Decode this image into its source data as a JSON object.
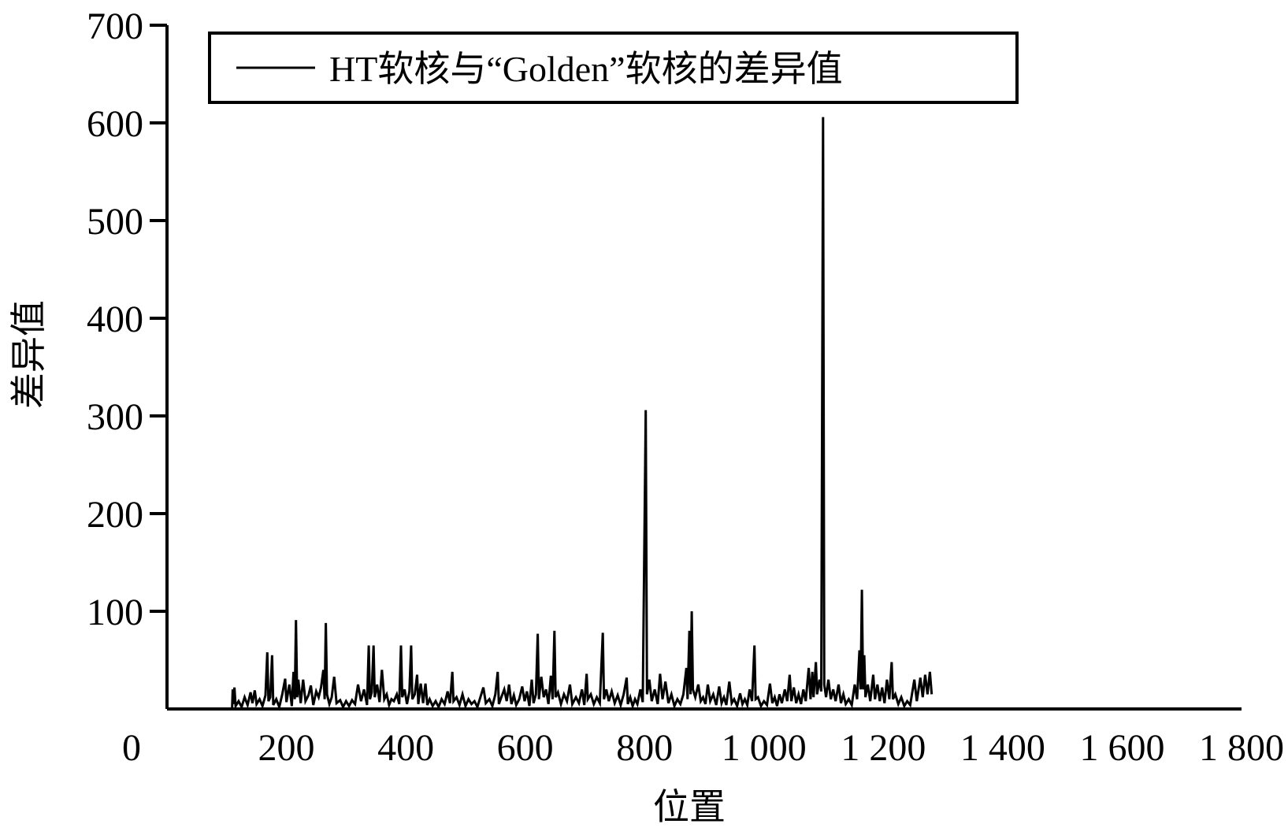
{
  "chart_data": {
    "type": "line",
    "title": "",
    "xlabel": "位置",
    "ylabel": "差异值",
    "xlim": [
      0,
      1800
    ],
    "ylim": [
      0,
      700
    ],
    "x_ticks": [
      0,
      200,
      400,
      600,
      800,
      1000,
      1200,
      1400,
      1600,
      1800
    ],
    "x_tick_labels": [
      "0",
      "200",
      "400",
      "600",
      "800",
      "1 000",
      "1 200",
      "1 400",
      "1 600",
      "1 800"
    ],
    "y_ticks": [
      100,
      200,
      300,
      400,
      500,
      600,
      700
    ],
    "y_tick_labels": [
      "100",
      "200",
      "300",
      "400",
      "500",
      "600",
      "700"
    ],
    "grid": false,
    "legend": {
      "placement": "top-left",
      "entries": [
        "HT软核与“Golden”软核的差异值"
      ]
    },
    "series": [
      {
        "name": "HT软核与“Golden”软核的差异值",
        "color": "#000000",
        "points": [
          [
            0,
            0
          ],
          [
            100,
            0
          ],
          [
            109,
            0
          ],
          [
            110,
            20
          ],
          [
            111,
            5
          ],
          [
            113,
            22
          ],
          [
            115,
            3
          ],
          [
            120,
            8
          ],
          [
            125,
            2
          ],
          [
            130,
            12
          ],
          [
            135,
            4
          ],
          [
            140,
            17
          ],
          [
            143,
            6
          ],
          [
            147,
            19
          ],
          [
            150,
            5
          ],
          [
            155,
            10
          ],
          [
            160,
            3
          ],
          [
            165,
            14
          ],
          [
            168,
            58
          ],
          [
            170,
            8
          ],
          [
            173,
            12
          ],
          [
            176,
            55
          ],
          [
            178,
            4
          ],
          [
            183,
            10
          ],
          [
            188,
            2
          ],
          [
            193,
            15
          ],
          [
            198,
            31
          ],
          [
            200,
            7
          ],
          [
            205,
            25
          ],
          [
            209,
            3
          ],
          [
            212,
            38
          ],
          [
            214,
            10
          ],
          [
            216,
            91
          ],
          [
            218,
            12
          ],
          [
            220,
            30
          ],
          [
            224,
            6
          ],
          [
            228,
            30
          ],
          [
            232,
            8
          ],
          [
            237,
            14
          ],
          [
            241,
            24
          ],
          [
            245,
            4
          ],
          [
            250,
            18
          ],
          [
            254,
            12
          ],
          [
            258,
            22
          ],
          [
            262,
            40
          ],
          [
            264,
            10
          ],
          [
            266,
            88
          ],
          [
            268,
            15
          ],
          [
            272,
            5
          ],
          [
            276,
            12
          ],
          [
            280,
            33
          ],
          [
            284,
            6
          ],
          [
            290,
            9
          ],
          [
            295,
            2
          ],
          [
            300,
            8
          ],
          [
            305,
            3
          ],
          [
            310,
            9
          ],
          [
            315,
            5
          ],
          [
            320,
            25
          ],
          [
            325,
            8
          ],
          [
            330,
            20
          ],
          [
            335,
            4
          ],
          [
            338,
            65
          ],
          [
            340,
            10
          ],
          [
            343,
            17
          ],
          [
            346,
            65
          ],
          [
            348,
            12
          ],
          [
            352,
            25
          ],
          [
            356,
            7
          ],
          [
            360,
            40
          ],
          [
            364,
            10
          ],
          [
            368,
            15
          ],
          [
            372,
            4
          ],
          [
            376,
            10
          ],
          [
            380,
            8
          ],
          [
            385,
            15
          ],
          [
            389,
            5
          ],
          [
            392,
            65
          ],
          [
            394,
            12
          ],
          [
            398,
            20
          ],
          [
            402,
            5
          ],
          [
            406,
            18
          ],
          [
            409,
            65
          ],
          [
            411,
            10
          ],
          [
            415,
            15
          ],
          [
            419,
            35
          ],
          [
            421,
            5
          ],
          [
            425,
            26
          ],
          [
            429,
            6
          ],
          [
            433,
            26
          ],
          [
            436,
            4
          ],
          [
            440,
            10
          ],
          [
            445,
            3
          ],
          [
            450,
            8
          ],
          [
            455,
            2
          ],
          [
            460,
            10
          ],
          [
            465,
            5
          ],
          [
            470,
            18
          ],
          [
            474,
            6
          ],
          [
            478,
            38
          ],
          [
            480,
            8
          ],
          [
            485,
            12
          ],
          [
            490,
            4
          ],
          [
            495,
            15
          ],
          [
            500,
            3
          ],
          [
            505,
            10
          ],
          [
            510,
            5
          ],
          [
            515,
            8
          ],
          [
            520,
            2
          ],
          [
            530,
            22
          ],
          [
            534,
            6
          ],
          [
            540,
            10
          ],
          [
            545,
            3
          ],
          [
            550,
            15
          ],
          [
            554,
            38
          ],
          [
            556,
            5
          ],
          [
            560,
            12
          ],
          [
            565,
            20
          ],
          [
            569,
            8
          ],
          [
            573,
            25
          ],
          [
            577,
            5
          ],
          [
            581,
            14
          ],
          [
            585,
            4
          ],
          [
            590,
            10
          ],
          [
            595,
            23
          ],
          [
            599,
            8
          ],
          [
            603,
            18
          ],
          [
            607,
            3
          ],
          [
            611,
            30
          ],
          [
            614,
            6
          ],
          [
            618,
            15
          ],
          [
            621,
            77
          ],
          [
            623,
            10
          ],
          [
            627,
            33
          ],
          [
            631,
            12
          ],
          [
            635,
            20
          ],
          [
            639,
            5
          ],
          [
            643,
            34
          ],
          [
            646,
            10
          ],
          [
            649,
            80
          ],
          [
            651,
            12
          ],
          [
            655,
            17
          ],
          [
            660,
            5
          ],
          [
            665,
            15
          ],
          [
            670,
            8
          ],
          [
            675,
            25
          ],
          [
            679,
            5
          ],
          [
            685,
            12
          ],
          [
            690,
            6
          ],
          [
            695,
            20
          ],
          [
            699,
            4
          ],
          [
            703,
            36
          ],
          [
            705,
            10
          ],
          [
            710,
            15
          ],
          [
            715,
            5
          ],
          [
            720,
            12
          ],
          [
            725,
            6
          ],
          [
            730,
            78
          ],
          [
            732,
            10
          ],
          [
            736,
            20
          ],
          [
            740,
            8
          ],
          [
            745,
            18
          ],
          [
            750,
            6
          ],
          [
            755,
            14
          ],
          [
            760,
            4
          ],
          [
            765,
            15
          ],
          [
            770,
            32
          ],
          [
            772,
            5
          ],
          [
            776,
            12
          ],
          [
            780,
            3
          ],
          [
            784,
            10
          ],
          [
            788,
            5
          ],
          [
            793,
            20
          ],
          [
            797,
            7
          ],
          [
            802,
            306
          ],
          [
            804,
            15
          ],
          [
            808,
            30
          ],
          [
            812,
            8
          ],
          [
            817,
            20
          ],
          [
            822,
            5
          ],
          [
            826,
            36
          ],
          [
            830,
            10
          ],
          [
            835,
            28
          ],
          [
            840,
            6
          ],
          [
            845,
            15
          ],
          [
            850,
            3
          ],
          [
            855,
            10
          ],
          [
            860,
            5
          ],
          [
            865,
            15
          ],
          [
            870,
            42
          ],
          [
            872,
            10
          ],
          [
            875,
            80
          ],
          [
            877,
            15
          ],
          [
            879,
            100
          ],
          [
            881,
            20
          ],
          [
            885,
            12
          ],
          [
            890,
            25
          ],
          [
            894,
            8
          ],
          [
            898,
            12
          ],
          [
            902,
            5
          ],
          [
            906,
            25
          ],
          [
            910,
            8
          ],
          [
            915,
            15
          ],
          [
            920,
            4
          ],
          [
            925,
            23
          ],
          [
            929,
            6
          ],
          [
            933,
            12
          ],
          [
            937,
            4
          ],
          [
            942,
            28
          ],
          [
            946,
            6
          ],
          [
            950,
            10
          ],
          [
            955,
            3
          ],
          [
            960,
            16
          ],
          [
            964,
            5
          ],
          [
            968,
            10
          ],
          [
            972,
            4
          ],
          [
            976,
            20
          ],
          [
            980,
            8
          ],
          [
            984,
            65
          ],
          [
            986,
            10
          ],
          [
            990,
            12
          ],
          [
            995,
            3
          ],
          [
            1000,
            8
          ],
          [
            1005,
            4
          ],
          [
            1010,
            26
          ],
          [
            1014,
            6
          ],
          [
            1018,
            12
          ],
          [
            1022,
            3
          ],
          [
            1026,
            15
          ],
          [
            1030,
            6
          ],
          [
            1035,
            20
          ],
          [
            1039,
            8
          ],
          [
            1043,
            35
          ],
          [
            1046,
            8
          ],
          [
            1050,
            22
          ],
          [
            1054,
            6
          ],
          [
            1058,
            15
          ],
          [
            1062,
            5
          ],
          [
            1066,
            20
          ],
          [
            1070,
            8
          ],
          [
            1075,
            42
          ],
          [
            1078,
            10
          ],
          [
            1081,
            38
          ],
          [
            1083,
            12
          ],
          [
            1087,
            48
          ],
          [
            1089,
            15
          ],
          [
            1093,
            30
          ],
          [
            1096,
            18
          ],
          [
            1099,
            606
          ],
          [
            1101,
            25
          ],
          [
            1104,
            12
          ],
          [
            1108,
            30
          ],
          [
            1112,
            10
          ],
          [
            1116,
            20
          ],
          [
            1120,
            8
          ],
          [
            1125,
            25
          ],
          [
            1129,
            6
          ],
          [
            1133,
            15
          ],
          [
            1137,
            5
          ],
          [
            1142,
            10
          ],
          [
            1147,
            4
          ],
          [
            1152,
            25
          ],
          [
            1156,
            10
          ],
          [
            1160,
            60
          ],
          [
            1162,
            20
          ],
          [
            1164,
            122
          ],
          [
            1166,
            20
          ],
          [
            1168,
            55
          ],
          [
            1170,
            12
          ],
          [
            1174,
            25
          ],
          [
            1178,
            8
          ],
          [
            1183,
            35
          ],
          [
            1186,
            10
          ],
          [
            1190,
            25
          ],
          [
            1194,
            8
          ],
          [
            1198,
            22
          ],
          [
            1202,
            6
          ],
          [
            1206,
            30
          ],
          [
            1210,
            10
          ],
          [
            1214,
            48
          ],
          [
            1216,
            10
          ],
          [
            1220,
            15
          ],
          [
            1225,
            5
          ],
          [
            1230,
            12
          ],
          [
            1235,
            3
          ],
          [
            1240,
            8
          ],
          [
            1245,
            4
          ],
          [
            1252,
            30
          ],
          [
            1256,
            8
          ],
          [
            1262,
            32
          ],
          [
            1266,
            12
          ],
          [
            1270,
            35
          ],
          [
            1274,
            15
          ],
          [
            1278,
            38
          ],
          [
            1281,
            15
          ]
        ]
      }
    ]
  }
}
